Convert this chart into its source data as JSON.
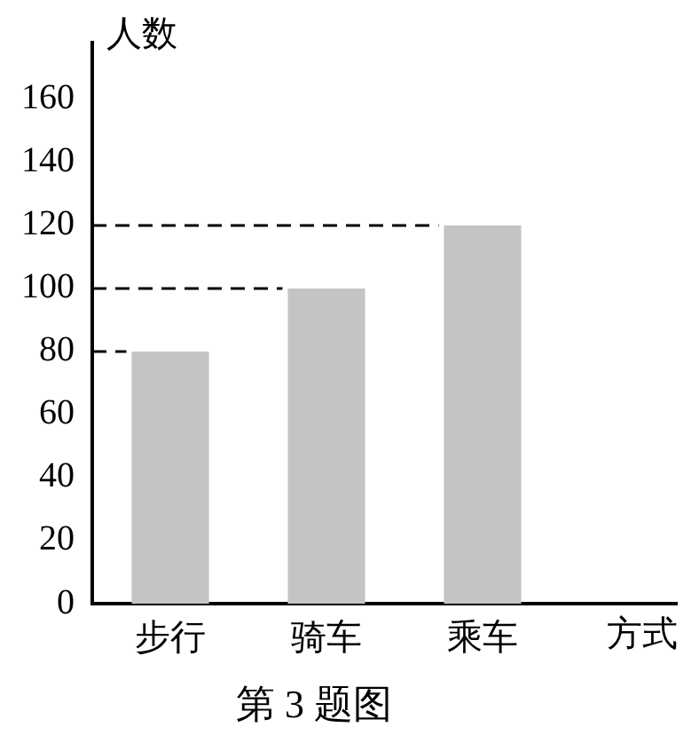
{
  "chart_data": {
    "type": "bar",
    "categories": [
      "步行",
      "骑车",
      "乘车"
    ],
    "values": [
      80,
      100,
      120
    ],
    "color": "#c4c4c4",
    "ylabel": "人数",
    "xlabel": "方式",
    "ylim": [
      0,
      178
    ],
    "yticks": [
      0,
      20,
      40,
      60,
      80,
      100,
      120,
      140,
      160
    ],
    "grid": false,
    "ref_lines": [
      {
        "axis": "y",
        "value": 80,
        "line_style": "dashed",
        "color": "#000000"
      },
      {
        "axis": "y",
        "value": 100,
        "line_style": "dashed",
        "color": "#000000"
      },
      {
        "axis": "y",
        "value": 120,
        "line_style": "dashed",
        "color": "#000000"
      }
    ],
    "annotations": [
      "第 3 题图"
    ]
  }
}
